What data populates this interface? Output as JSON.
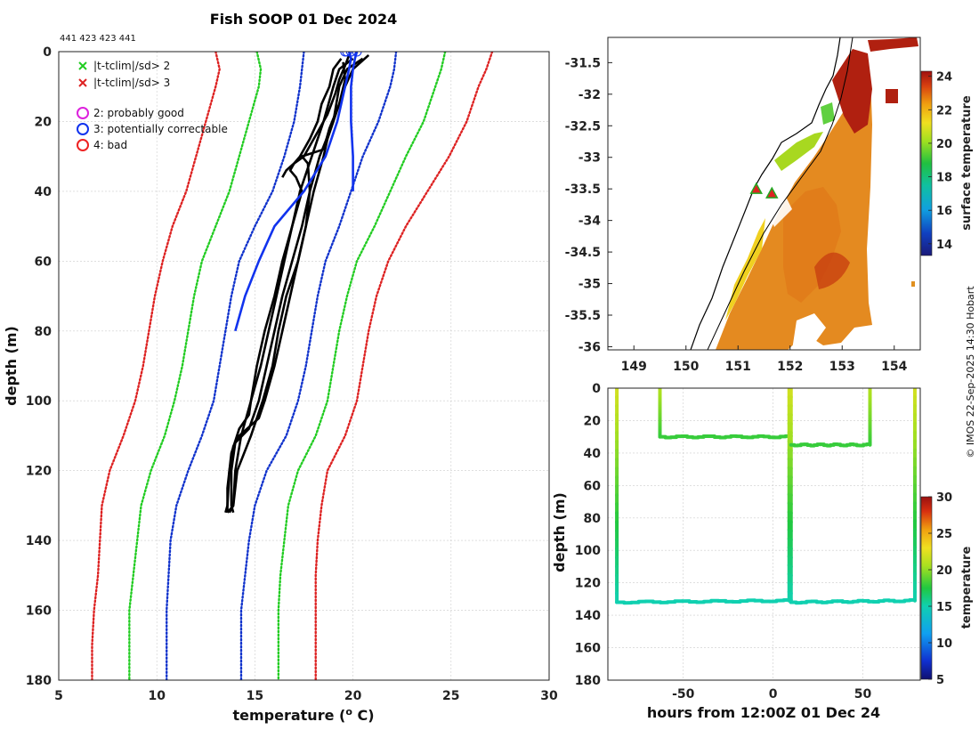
{
  "title": "Fish SOOP 01 Dec 2024",
  "profile_ids": "441 423 423 441",
  "credit": "© IMOS 22-Sep-2025 14:30 Hobart",
  "colors": {
    "clim_sd3": "#dd2222",
    "clim_sd2": "#22cc22",
    "clim_sd1": "#1133cc",
    "profile": "#000000",
    "profile_flag3": "#1133ee"
  },
  "legend": [
    {
      "marker": "x",
      "color": "#22cc22",
      "label": "|t-tclim|/sd> 2"
    },
    {
      "marker": "x",
      "color": "#dd2222",
      "label": "|t-tclim|/sd> 3"
    },
    {
      "marker": "o",
      "color": "#dd22dd",
      "label": "2: probably good"
    },
    {
      "marker": "o",
      "color": "#1133ee",
      "label": "3: potentially correctable"
    },
    {
      "marker": "o",
      "color": "#ee2222",
      "label": "4: bad"
    }
  ],
  "chart_data": [
    {
      "type": "line",
      "name": "profile",
      "xlabel": "temperature (",
      "xlabel_sup": "o",
      "xlabel_unit": " C)",
      "ylabel": "depth (m)",
      "xlim": [
        5,
        30
      ],
      "ylim": [
        0,
        180
      ],
      "xticks": [
        5,
        10,
        15,
        20,
        25,
        30
      ],
      "yticks": [
        0,
        20,
        40,
        60,
        80,
        100,
        120,
        140,
        160,
        180
      ],
      "climatology": [
        {
          "name": "-3sd",
          "style": "sd3",
          "depth": [
            0,
            5,
            10,
            20,
            30,
            40,
            50,
            60,
            70,
            80,
            90,
            100,
            110,
            120,
            130,
            140,
            150,
            160,
            170,
            180
          ],
          "temp": [
            13,
            13.2,
            13,
            12.5,
            12,
            11.5,
            10.8,
            10.3,
            9.9,
            9.6,
            9.3,
            8.9,
            8.3,
            7.6,
            7.2,
            7.1,
            7.0,
            6.8,
            6.7,
            6.7
          ]
        },
        {
          "name": "-2sd",
          "style": "sd2",
          "depth": [
            0,
            5,
            10,
            20,
            30,
            40,
            50,
            60,
            70,
            80,
            90,
            100,
            110,
            120,
            130,
            140,
            150,
            160,
            170,
            180
          ],
          "temp": [
            15.1,
            15.3,
            15.2,
            14.7,
            14.2,
            13.7,
            13.0,
            12.3,
            11.9,
            11.6,
            11.3,
            10.9,
            10.4,
            9.7,
            9.2,
            9.0,
            8.8,
            8.6,
            8.6,
            8.6
          ]
        },
        {
          "name": "-1sd",
          "style": "sd1",
          "depth": [
            0,
            5,
            10,
            20,
            30,
            40,
            50,
            60,
            70,
            80,
            90,
            100,
            110,
            120,
            130,
            140,
            150,
            160,
            170,
            180
          ],
          "temp": [
            17.5,
            17.4,
            17.3,
            17.0,
            16.5,
            15.9,
            15.0,
            14.2,
            13.8,
            13.5,
            13.2,
            12.9,
            12.3,
            11.6,
            11.0,
            10.7,
            10.6,
            10.5,
            10.5,
            10.5
          ]
        },
        {
          "name": "+1sd",
          "style": "sd1",
          "depth": [
            0,
            5,
            10,
            20,
            30,
            40,
            50,
            60,
            70,
            80,
            90,
            100,
            110,
            120,
            130,
            140,
            150,
            160,
            170,
            180
          ],
          "temp": [
            22.2,
            22.1,
            21.9,
            21.3,
            20.5,
            19.9,
            19.3,
            18.6,
            18.2,
            17.9,
            17.6,
            17.2,
            16.6,
            15.6,
            15.0,
            14.7,
            14.5,
            14.3,
            14.3,
            14.3
          ]
        },
        {
          "name": "+2sd",
          "style": "sd2",
          "depth": [
            0,
            5,
            10,
            20,
            30,
            40,
            50,
            60,
            70,
            80,
            90,
            100,
            110,
            120,
            130,
            140,
            150,
            160,
            170,
            180
          ],
          "temp": [
            24.7,
            24.5,
            24.2,
            23.6,
            22.7,
            21.9,
            21.1,
            20.2,
            19.7,
            19.3,
            19.0,
            18.7,
            18.1,
            17.2,
            16.7,
            16.5,
            16.3,
            16.2,
            16.2,
            16.2
          ]
        },
        {
          "name": "+3sd",
          "style": "sd3",
          "depth": [
            0,
            5,
            10,
            20,
            30,
            40,
            50,
            60,
            70,
            80,
            90,
            100,
            110,
            120,
            130,
            140,
            150,
            160,
            170,
            180
          ],
          "temp": [
            27.1,
            26.8,
            26.4,
            25.8,
            24.9,
            23.8,
            22.7,
            21.8,
            21.2,
            20.8,
            20.5,
            20.2,
            19.6,
            18.7,
            18.4,
            18.2,
            18.1,
            18.1,
            18.1,
            18.1
          ]
        }
      ],
      "profiles": [
        {
          "flag": "good",
          "depth": [
            2,
            5,
            10,
            20,
            30,
            35,
            40,
            50,
            60,
            70,
            80,
            90,
            100,
            110,
            120,
            130,
            132
          ],
          "temp": [
            20.0,
            19.3,
            19.0,
            18.5,
            17.9,
            17.6,
            17.3,
            16.9,
            16.5,
            16.1,
            15.7,
            15.3,
            14.8,
            14.3,
            14.0,
            13.9,
            13.7
          ]
        },
        {
          "flag": "good",
          "depth": [
            2,
            5,
            10,
            20,
            30,
            40,
            50,
            60,
            70,
            80,
            90,
            100,
            110,
            120,
            130,
            132
          ],
          "temp": [
            20.5,
            19.7,
            19.3,
            19.0,
            18.3,
            17.8,
            17.6,
            17.2,
            16.6,
            16.2,
            15.9,
            15.4,
            14.8,
            14.1,
            13.9,
            13.6
          ]
        },
        {
          "flag": "good",
          "depth": [
            1,
            5,
            10,
            20,
            25,
            30,
            40,
            50,
            60,
            70,
            80,
            90,
            100,
            105,
            110,
            113,
            120,
            130,
            132
          ],
          "temp": [
            20.8,
            20.0,
            19.6,
            19.0,
            18.7,
            18.5,
            18.0,
            17.6,
            17.2,
            16.8,
            16.4,
            16.0,
            15.5,
            15.2,
            14.2,
            13.9,
            13.7,
            13.6,
            13.5
          ]
        },
        {
          "flag": "good",
          "depth": [
            2,
            5,
            10,
            15,
            20,
            25,
            30,
            32,
            34,
            36,
            40,
            50,
            60,
            70,
            80,
            90,
            100,
            104,
            108,
            115,
            125,
            132
          ],
          "temp": [
            19.4,
            19.0,
            18.8,
            18.4,
            18.2,
            17.8,
            17.3,
            17.0,
            16.8,
            17.1,
            17.4,
            16.9,
            16.4,
            16.0,
            15.5,
            15.1,
            14.8,
            14.7,
            14.2,
            13.8,
            13.6,
            13.6
          ]
        },
        {
          "flag": "good",
          "depth": [
            3,
            8,
            15,
            22,
            28,
            30,
            32,
            40,
            50,
            60,
            70,
            80,
            90,
            100,
            108,
            112,
            120,
            130,
            132
          ],
          "temp": [
            19.5,
            19.6,
            19.3,
            18.8,
            18.5,
            17.4,
            17.7,
            17.8,
            17.4,
            16.9,
            16.4,
            16.0,
            15.6,
            15.2,
            14.7,
            14.0,
            13.8,
            13.8,
            13.9
          ]
        },
        {
          "flag": "good",
          "depth": [
            1,
            4,
            8,
            12,
            18,
            24,
            30,
            32,
            34,
            36
          ],
          "temp": [
            19.8,
            19.6,
            19.3,
            19.1,
            18.7,
            18.1,
            17.5,
            17.0,
            16.6,
            16.4
          ]
        },
        {
          "flag": "correctable",
          "depth": [
            0,
            2,
            5,
            10,
            20,
            30,
            40,
            50,
            60,
            70,
            80
          ],
          "temp": [
            19.8,
            19.9,
            19.8,
            19.6,
            19.2,
            18.6,
            17.5,
            16.0,
            15.2,
            14.5,
            14.0
          ]
        },
        {
          "flag": "correctable",
          "depth": [
            0,
            2,
            5,
            10,
            20,
            30,
            40
          ],
          "temp": [
            20.2,
            20.1,
            20.0,
            19.9,
            19.9,
            20.0,
            20.0
          ]
        }
      ],
      "flag_markers_depth": [
        0,
        0,
        0,
        0
      ],
      "flag_markers_temp": [
        19.7,
        19.9,
        20.2,
        19.6
      ]
    },
    {
      "type": "heatmap",
      "name": "map",
      "colorbar_label": "surface temperature",
      "lon_ticks": [
        149,
        150,
        151,
        152,
        153,
        154
      ],
      "lat_ticks": [
        -31.5,
        -32,
        -32.5,
        -33,
        -33.5,
        -34,
        -34.5,
        -35,
        -35.5,
        -36
      ],
      "lon_range": [
        148.5,
        154.5
      ],
      "lat_range": [
        -36.05,
        -31.1
      ],
      "colorbar_range": [
        13.3,
        24.3
      ],
      "colorbar_ticks": [
        14,
        16,
        18,
        20,
        22,
        24
      ],
      "markers": [
        {
          "lon": 151.35,
          "lat": -33.5
        },
        {
          "lon": 151.65,
          "lat": -33.57
        }
      ]
    },
    {
      "type": "scatter",
      "name": "time_section",
      "xlabel": "hours from 12:00Z 01 Dec 24",
      "ylabel": "depth (m)",
      "xlim": [
        -92,
        82
      ],
      "ylim": [
        0,
        180
      ],
      "xticks": [
        -50,
        0,
        50
      ],
      "yticks": [
        0,
        20,
        40,
        60,
        80,
        100,
        120,
        140,
        160,
        180
      ],
      "colorbar_label": "temperature",
      "colorbar_range": [
        5,
        30
      ],
      "colorbar_ticks": [
        5,
        10,
        15,
        20,
        25,
        30
      ],
      "segments": [
        {
          "x": [
            -87,
            -87
          ],
          "depth": [
            0,
            132
          ],
          "temp": [
            22,
            15
          ]
        },
        {
          "x": [
            -87,
            10
          ],
          "depth": [
            132,
            131
          ],
          "temp": [
            15,
            15
          ]
        },
        {
          "x": [
            -63,
            -63
          ],
          "depth": [
            0,
            30
          ],
          "temp": [
            21,
            18
          ]
        },
        {
          "x": [
            -63,
            10
          ],
          "depth": [
            30,
            30
          ],
          "temp": [
            18,
            18
          ]
        },
        {
          "x": [
            9,
            9
          ],
          "depth": [
            0,
            131
          ],
          "temp": [
            22,
            15
          ]
        },
        {
          "x": [
            10,
            10
          ],
          "depth": [
            0,
            132
          ],
          "temp": [
            22,
            15
          ]
        },
        {
          "x": [
            10,
            54
          ],
          "depth": [
            35,
            35
          ],
          "temp": [
            18,
            18
          ]
        },
        {
          "x": [
            54,
            54
          ],
          "depth": [
            0,
            35
          ],
          "temp": [
            21,
            18
          ]
        },
        {
          "x": [
            10,
            79
          ],
          "depth": [
            132,
            131
          ],
          "temp": [
            15,
            15
          ]
        },
        {
          "x": [
            79,
            79
          ],
          "depth": [
            0,
            131
          ],
          "temp": [
            22,
            15
          ]
        }
      ]
    }
  ]
}
